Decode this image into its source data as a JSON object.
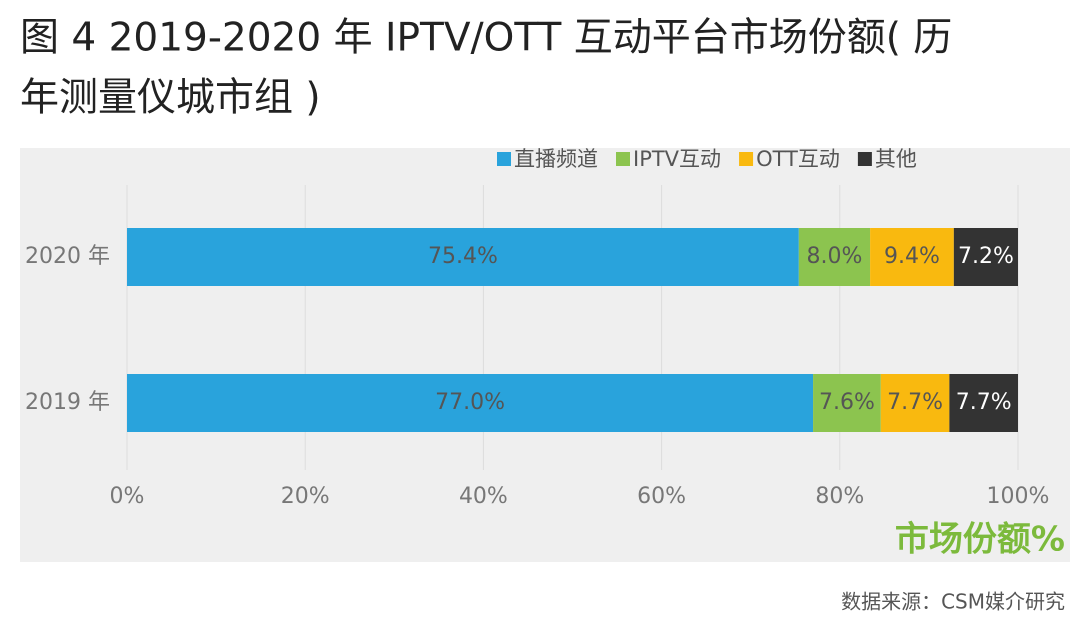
{
  "chart_data": {
    "type": "stacked_barh",
    "title": [
      "图 4 2019-2020 年 IPTV/OTT 互动平台市场份额( 历",
      "年测量仪城市组 )"
    ],
    "categories": [
      "2020 年",
      "2019 年"
    ],
    "series": [
      {
        "name": "直播频道",
        "color": "#29a3dc",
        "label_color": "#555555",
        "values": [
          75.4,
          77.0
        ],
        "value_labels": [
          "75.4%",
          "77.0%"
        ]
      },
      {
        "name": "IPTV互动",
        "color": "#8cc44f",
        "label_color": "#555555",
        "values": [
          8.0,
          7.6
        ],
        "value_labels": [
          "8.0%",
          "7.6%"
        ]
      },
      {
        "name": "OTT互动",
        "color": "#f9b90f",
        "label_color": "#555555",
        "values": [
          9.4,
          7.7
        ],
        "value_labels": [
          "9.4%",
          "7.7%"
        ]
      },
      {
        "name": "其他",
        "color": "#333333",
        "label_color": "#ffffff",
        "values": [
          7.2,
          7.7
        ],
        "value_labels": [
          "7.2%",
          "7.7%"
        ]
      }
    ],
    "xlim": [
      0,
      100
    ],
    "xticks": [
      {
        "value": 0,
        "label": "0%"
      },
      {
        "value": 20,
        "label": "20%"
      },
      {
        "value": 40,
        "label": "40%"
      },
      {
        "value": 60,
        "label": "60%"
      },
      {
        "value": 80,
        "label": "80%"
      },
      {
        "value": 100,
        "label": "100%"
      }
    ],
    "x_label": "市场份额%",
    "x_label_color": "#7cba3c",
    "legend": "top",
    "source": "数据来源：CSM媒介研究"
  }
}
